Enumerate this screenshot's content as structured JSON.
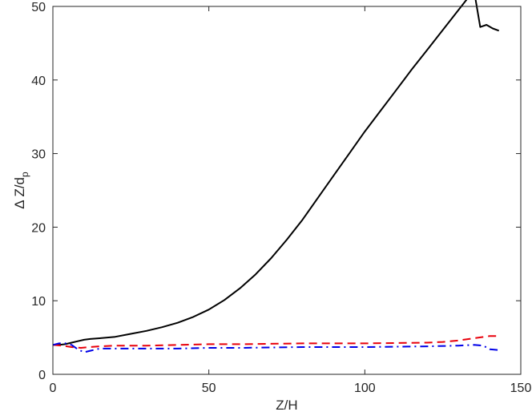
{
  "chart_data": {
    "type": "line",
    "xlabel": "Z/H",
    "ylabel": {
      "main": "Δ Z/d",
      "subscript": "p"
    },
    "xlim": [
      0,
      150
    ],
    "ylim": [
      0,
      50
    ],
    "xticks": [
      0,
      50,
      100,
      150
    ],
    "yticks": [
      0,
      10,
      20,
      30,
      40,
      50
    ],
    "grid": false,
    "legend": "none",
    "series": [
      {
        "color": "#000000",
        "style": "solid",
        "x": [
          0,
          2,
          4,
          6,
          8,
          10,
          12,
          15,
          20,
          25,
          30,
          35,
          40,
          45,
          50,
          55,
          60,
          65,
          70,
          75,
          80,
          85,
          90,
          95,
          100,
          105,
          110,
          115,
          120,
          125,
          130,
          135,
          137,
          139,
          141,
          143
        ],
        "y": [
          4.0,
          4.0,
          4.1,
          4.3,
          4.5,
          4.7,
          4.8,
          4.9,
          5.1,
          5.5,
          5.9,
          6.4,
          7.0,
          7.8,
          8.8,
          10.1,
          11.7,
          13.6,
          15.8,
          18.3,
          21.0,
          24.0,
          27.0,
          30.0,
          33.0,
          35.8,
          38.6,
          41.4,
          44.1,
          46.8,
          49.5,
          52.2,
          47.2,
          47.5,
          47.0,
          46.7
        ]
      },
      {
        "color": "#e8000b",
        "style": "dashed",
        "x": [
          0,
          3,
          6,
          9,
          12,
          15,
          20,
          30,
          40,
          50,
          60,
          80,
          100,
          120,
          125,
          130,
          135,
          140,
          143
        ],
        "y": [
          4.0,
          3.9,
          3.7,
          3.6,
          3.7,
          3.8,
          3.9,
          3.9,
          4.0,
          4.1,
          4.1,
          4.2,
          4.2,
          4.3,
          4.4,
          4.6,
          4.9,
          5.2,
          5.2
        ]
      },
      {
        "color": "#0000e8",
        "style": "dashdot",
        "x": [
          0,
          2,
          4,
          6,
          8,
          10,
          12,
          15,
          20,
          30,
          40,
          50,
          60,
          80,
          100,
          120,
          130,
          135,
          138,
          140,
          143
        ],
        "y": [
          4.0,
          4.2,
          4.2,
          4.0,
          3.4,
          3.0,
          3.2,
          3.5,
          3.5,
          3.5,
          3.5,
          3.6,
          3.6,
          3.7,
          3.7,
          3.8,
          3.9,
          4.0,
          3.9,
          3.4,
          3.3
        ]
      }
    ]
  }
}
